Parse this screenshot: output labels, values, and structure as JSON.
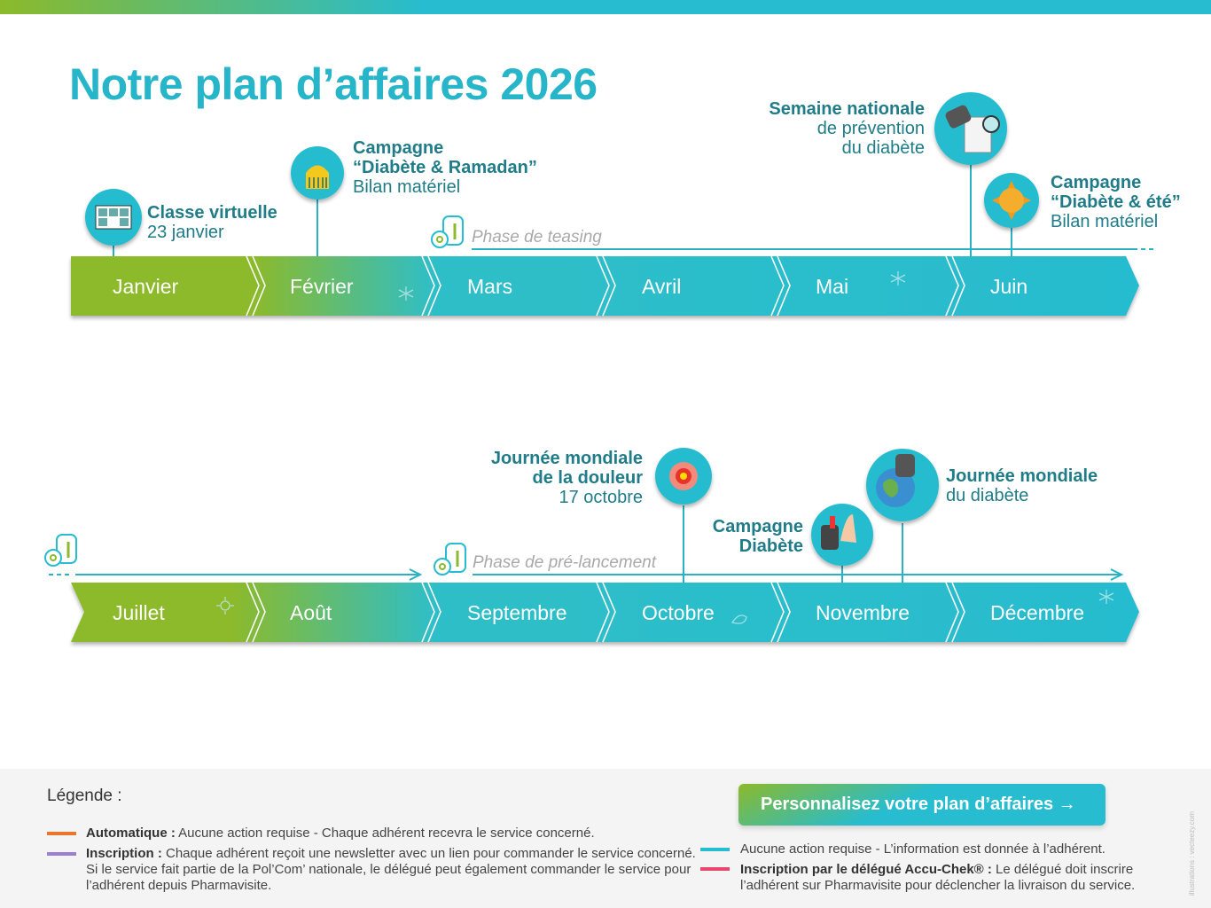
{
  "title": "Notre plan d’affaires 2026",
  "row1": {
    "months": [
      "Janvier",
      "Février",
      "Mars",
      "Avril",
      "Mai",
      "Juin"
    ],
    "phase": "Phase de teasing",
    "events": [
      {
        "title": "Classe virtuelle",
        "lines": [
          "23 janvier"
        ],
        "icon": "video-call-icon"
      },
      {
        "title": "Campagne",
        "title2": "“Diabète & Ramadan”",
        "lines": [
          "Bilan matériel"
        ],
        "icon": "mosque-icon"
      },
      {
        "title": "Semaine nationale",
        "lines": [
          "de prévention",
          "du diabète"
        ],
        "icon": "glucometer-icon"
      },
      {
        "title": "Campagne",
        "title2": "“Diabète & été”",
        "lines": [
          "Bilan matériel"
        ],
        "icon": "sun-icon"
      }
    ]
  },
  "row2": {
    "months": [
      "Juillet",
      "Août",
      "Septembre",
      "Octobre",
      "Novembre",
      "Décembre"
    ],
    "phase": "Phase de pré-lancement",
    "events": [
      {
        "title": "Journée mondiale",
        "title2": "de la douleur",
        "lines": [
          "17 octobre"
        ],
        "icon": "pain-target-icon"
      },
      {
        "title": "Campagne",
        "title2": "Diabète",
        "lines": [],
        "icon": "lancet-icon"
      },
      {
        "title": "Journée mondiale",
        "lines": [
          "du diabète"
        ],
        "icon": "globe-icon"
      }
    ]
  },
  "legend": {
    "title": "Légende :",
    "items": [
      {
        "label": "Automatique :",
        "text": " Aucune action requise - Chaque adhérent recevra le service concerné.",
        "color": "#e8772a"
      },
      {
        "label": "Inscription :",
        "text": " Chaque adhérent reçoit une newsletter avec un lien pour commander le service concerné.",
        "text2": "Si le service fait partie de la Pol’Com’ nationale, le délégué peut également commander le service pour",
        "text3": "l’adhérent depuis Pharmavisite.",
        "color": "#9b7fd4"
      },
      {
        "label": "",
        "text": "Aucune action requise - L’information est donnée à l’adhérent.",
        "color": "#27bccf"
      },
      {
        "label": "Inscription par le délégué Accu-Chek® :",
        "text": " Le délégué doit inscrire",
        "text2": "l’adhérent sur Pharmavisite pour déclencher la livraison du service.",
        "color": "#e8476d"
      }
    ]
  },
  "cta": "Personnalisez votre plan d’affaires →",
  "credit": "illustrations : vecteezy.com",
  "colors": {
    "green": "#8cba2a",
    "teal": "#27bccf",
    "text": "#1f7c88"
  }
}
